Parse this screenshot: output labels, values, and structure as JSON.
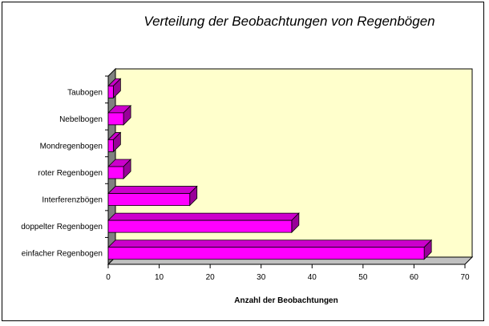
{
  "chart_data": {
    "type": "bar",
    "orientation": "horizontal",
    "title": "Verteilung der Beobachtungen von Regenbögen",
    "xlabel": "Anzahl der Beobachtungen",
    "ylabel": "",
    "categories": [
      "Taubogen",
      "Nebelbogen",
      "Mondregenbogen",
      "roter Regenbogen",
      "Interferenzbögen",
      "doppelter Regenbogen",
      "einfacher Regenbogen"
    ],
    "values": [
      1,
      3,
      1,
      3,
      16,
      36,
      62
    ],
    "xlim": [
      0,
      70
    ],
    "xticks": [
      0,
      10,
      20,
      30,
      40,
      50,
      60,
      70
    ],
    "grid": false,
    "legend": "none",
    "colors": {
      "bar_front": "#ff00ff",
      "bar_top": "#cc00cc",
      "bar_side": "#990099",
      "bar_stroke": "#000000",
      "plot_background": "#ffffcc",
      "wall_side": "#808080"
    }
  }
}
